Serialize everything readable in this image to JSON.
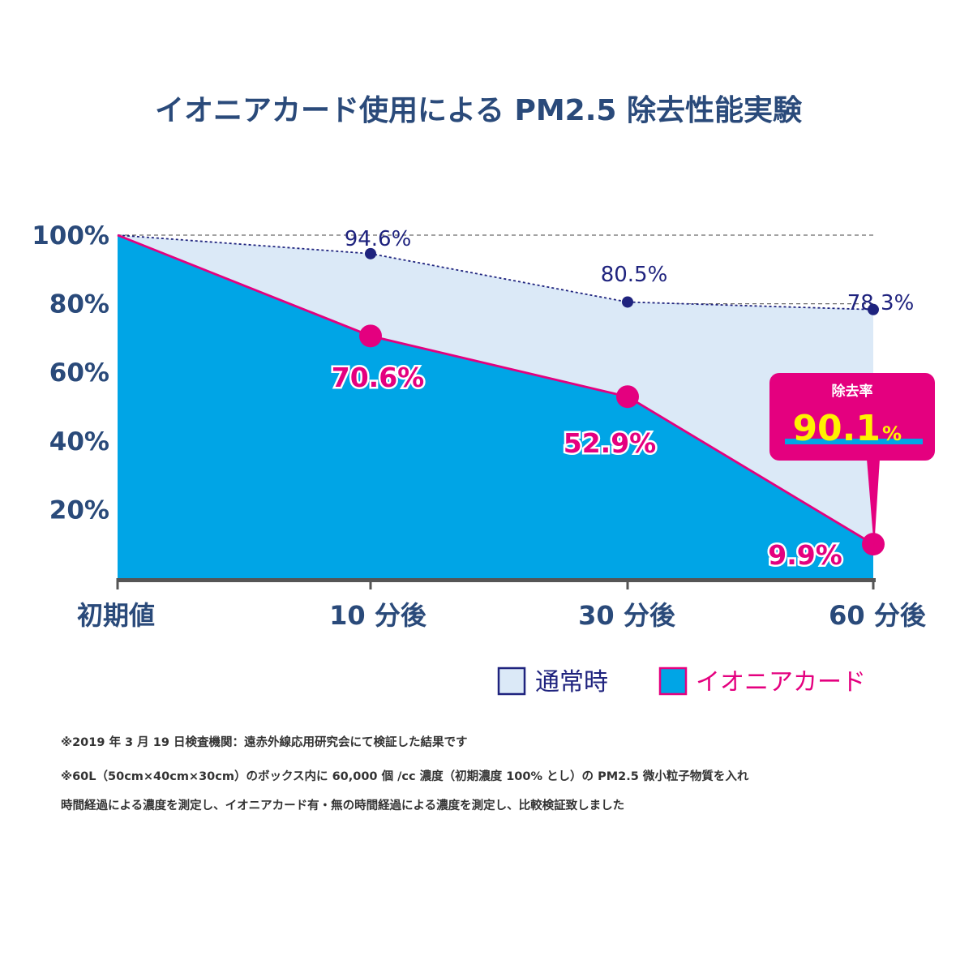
{
  "chart_data": {
    "type": "area",
    "title": "イオニアカード使用による PM2.5 除去性能実験",
    "categories": [
      "初期値",
      "10 分後",
      "30 分後",
      "60 分後"
    ],
    "series": [
      {
        "name": "通常時",
        "values": [
          100,
          94.6,
          80.5,
          78.3
        ],
        "labels": [
          "",
          "94.6%",
          "80.5%",
          "78.3%"
        ],
        "color": "#dbe9f7",
        "line_color": "#1f237e"
      },
      {
        "name": "イオニアカード",
        "values": [
          100,
          70.6,
          52.9,
          9.9
        ],
        "labels": [
          "",
          "70.6%",
          "52.9%",
          "9.9%"
        ],
        "color": "#00a5e6",
        "line_color": "#e4007f"
      }
    ],
    "yticks": [
      "100%",
      "80%",
      "60%",
      "40%",
      "20%"
    ],
    "ytick_values": [
      100,
      80,
      60,
      40,
      20
    ],
    "ylim": [
      0,
      100
    ],
    "grid": true,
    "legend_position": "bottom-right",
    "callout": {
      "heading": "除去率",
      "value": "90.1",
      "unit": "%",
      "color": "#e4007f"
    }
  },
  "notes": [
    "※2019 年 3 月 19 日検査機関：遠赤外線応用研究会にて検証した結果です",
    "※60L（50cm×40cm×30cm）のボックス内に 60,000 個 /cc 濃度（初期濃度 100% とし）の PM2.5 微小粒子物質を入れ",
    "時間経過による濃度を測定し、イオニアカード有・無の時間経過による濃度を測定し、比較検証致しました"
  ]
}
